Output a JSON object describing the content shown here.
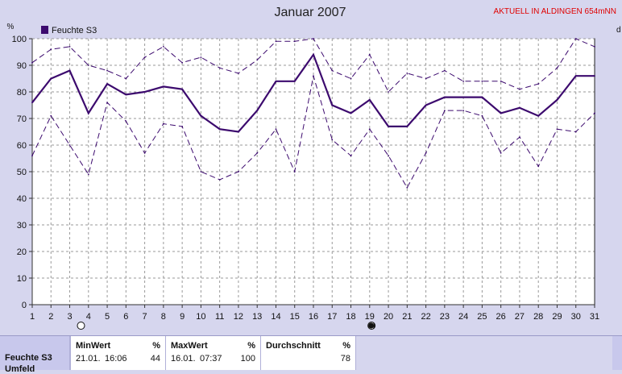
{
  "chart_data": {
    "type": "line",
    "title": "Januar 2007",
    "station": "AKTUELL IN ALDINGEN 654mNN",
    "y_unit": "%",
    "right_edge_label": "d",
    "ylim": [
      0,
      100
    ],
    "y_ticks": [
      0,
      10,
      20,
      30,
      40,
      50,
      60,
      70,
      80,
      90,
      100
    ],
    "x": [
      1,
      2,
      3,
      4,
      5,
      6,
      7,
      8,
      9,
      10,
      11,
      12,
      13,
      14,
      15,
      16,
      17,
      18,
      19,
      20,
      21,
      22,
      23,
      24,
      25,
      26,
      27,
      28,
      29,
      30,
      31
    ],
    "grid": true,
    "legend": {
      "placement": "top-left",
      "entries": [
        "Feuchte S3"
      ]
    },
    "series": [
      {
        "name": "Feuchte S3",
        "role": "average",
        "values": [
          76,
          85,
          88,
          72,
          83,
          79,
          80,
          82,
          81,
          71,
          66,
          65,
          73,
          84,
          84,
          94,
          75,
          72,
          77,
          67,
          67,
          75,
          78,
          78,
          78,
          72,
          74,
          71,
          77,
          86,
          86
        ]
      },
      {
        "role": "max",
        "values": [
          91,
          96,
          97,
          90,
          88,
          85,
          93,
          97,
          91,
          93,
          89,
          87,
          92,
          99,
          99,
          100,
          88,
          85,
          94,
          80,
          87,
          85,
          88,
          84,
          84,
          84,
          81,
          83,
          89,
          100,
          97
        ]
      },
      {
        "role": "min",
        "values": [
          56,
          71,
          60,
          49,
          76,
          69,
          57,
          68,
          67,
          50,
          47,
          50,
          57,
          66,
          50,
          86,
          62,
          56,
          66,
          56,
          44,
          57,
          73,
          73,
          71,
          57,
          63,
          52,
          66,
          65,
          72
        ]
      }
    ],
    "markers": [
      {
        "day": 3.6,
        "type": "full-moon"
      },
      {
        "day": 19.1,
        "type": "new-moon"
      }
    ],
    "line_color": "#3c0a6e"
  },
  "stats": {
    "row_label": "Feuchte S3",
    "row_label_2": "Umfeld",
    "min": {
      "label": "MinWert",
      "unit": "%",
      "date": "21.01.",
      "time": "16:06",
      "value": "44"
    },
    "max": {
      "label": "MaxWert",
      "unit": "%",
      "date": "16.01.",
      "time": "07:37",
      "value": "100"
    },
    "avg": {
      "label": "Durchschnitt",
      "unit": "%",
      "value": "78"
    }
  }
}
